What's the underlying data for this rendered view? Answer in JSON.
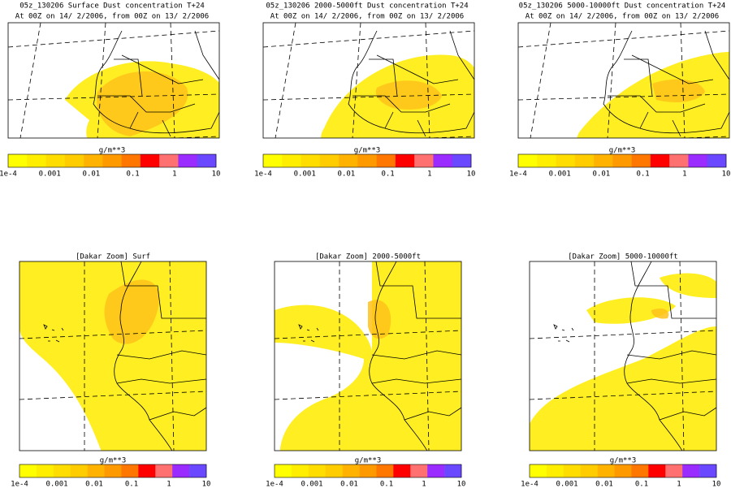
{
  "panels": [
    {
      "title": "05z_130206 Surface Dust concentration T+24",
      "subtitle": "At 00Z on 14/ 2/2006, from 00Z on 13/ 2/2006"
    },
    {
      "title": "05z_130206 2000-5000ft Dust concentration T+24",
      "subtitle": "At 00Z on 14/ 2/2006, from 00Z on 13/ 2/2006"
    },
    {
      "title": "05z_130206 5000-10000ft Dust concentration T+24",
      "subtitle": "At 00Z on 14/ 2/2006, from 00Z on 13/ 2/2006"
    }
  ],
  "zoom_panels": [
    {
      "title": "[Dakar Zoom] Surf"
    },
    {
      "title": "[Dakar Zoom] 2000-5000ft"
    },
    {
      "title": "[Dakar Zoom] 5000-10000ft"
    }
  ],
  "legend": {
    "label": "g/m**3",
    "ticks": [
      "1e-4",
      "0.001",
      "0.01",
      "0.1",
      "1",
      "10"
    ],
    "colors": [
      "#ffff00",
      "#ffee00",
      "#ffdd00",
      "#ffcc00",
      "#ffb300",
      "#ff9900",
      "#ff7700",
      "#ff0000",
      "#ff7070",
      "#9a2cff",
      "#6a48ff"
    ]
  }
}
